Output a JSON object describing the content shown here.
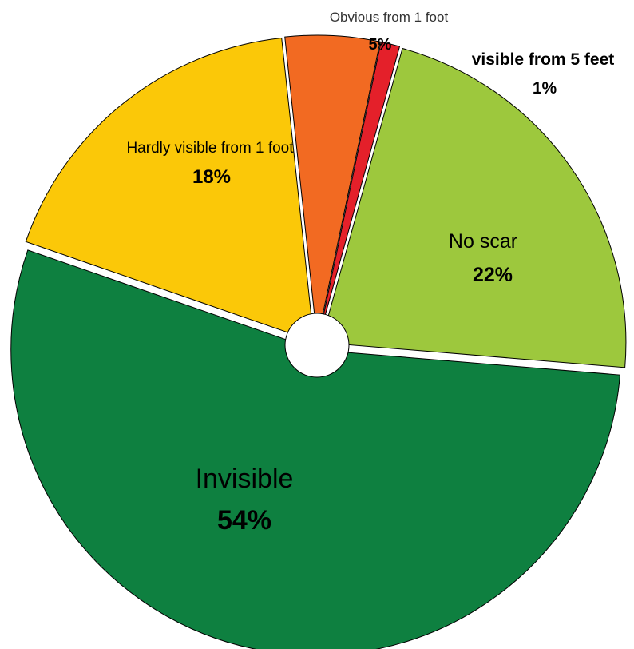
{
  "chart_data": {
    "type": "pie",
    "title": "",
    "slices": [
      {
        "label": "No scar",
        "value": 22,
        "value_label": "22%",
        "color": "#9DC83D"
      },
      {
        "label": "Invisible",
        "value": 54,
        "value_label": "54%",
        "color": "#0E8040"
      },
      {
        "label": "Hardly visible from 1 foot",
        "value": 18,
        "value_label": "18%",
        "color": "#FBC808"
      },
      {
        "label": "Obvious from 1 foot",
        "value": 5,
        "value_label": "5%",
        "color": "#F26A22"
      },
      {
        "label": "visible from 5 feet",
        "value": 1,
        "value_label": "1%",
        "color": "#E4202A"
      }
    ]
  }
}
